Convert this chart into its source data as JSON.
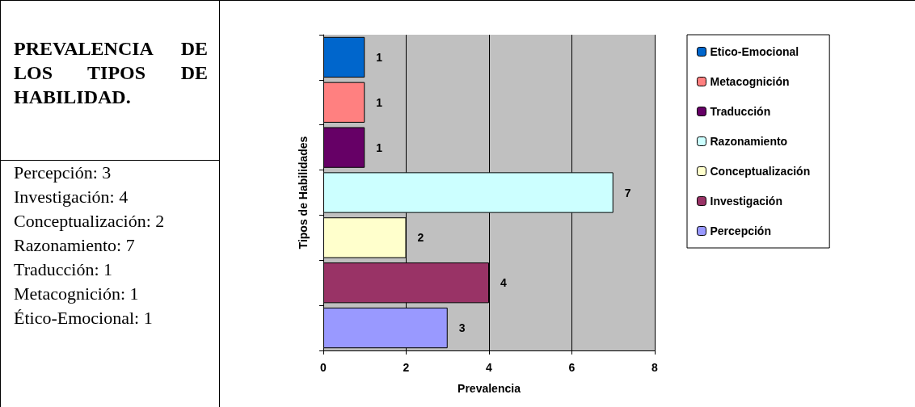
{
  "chart_data": {
    "type": "bar",
    "orientation": "horizontal",
    "title": "PREVALENCIA DE LOS TIPOS DE HABILIDAD.",
    "annotations": [
      "Percepción: 3",
      "Investigación: 4",
      "Conceptualización: 2",
      "Razonamiento: 7",
      "Traducción: 1",
      "Metacognición: 1",
      "Ético-Emocional: 1"
    ],
    "xlabel": "Prevalencia",
    "ylabel": "Tipos de Habilidades",
    "categories": [
      null,
      null,
      null,
      null,
      null,
      null,
      null
    ],
    "series": [
      {
        "name": "Etico-Emocional",
        "color": "#0066cc",
        "values": [
          1,
          null,
          null,
          null,
          null,
          null,
          null
        ]
      },
      {
        "name": "Metacognición",
        "color": "#ff8080",
        "values": [
          null,
          1,
          null,
          null,
          null,
          null,
          null
        ]
      },
      {
        "name": "Traducción",
        "color": "#660066",
        "values": [
          null,
          null,
          1,
          null,
          null,
          null,
          null
        ]
      },
      {
        "name": "Razonamiento",
        "color": "#ccffff",
        "values": [
          null,
          null,
          null,
          7,
          null,
          null,
          null
        ]
      },
      {
        "name": "Conceptualización",
        "color": "#ffffcc",
        "values": [
          null,
          null,
          null,
          null,
          2,
          null,
          null
        ]
      },
      {
        "name": "Investigación",
        "color": "#993366",
        "values": [
          null,
          null,
          null,
          null,
          null,
          4,
          null
        ]
      },
      {
        "name": "Percepción",
        "color": "#9999ff",
        "values": [
          null,
          null,
          null,
          null,
          null,
          null,
          3
        ]
      }
    ],
    "xlim": [
      0,
      8
    ],
    "xticks": [
      0,
      2,
      4,
      6,
      8
    ],
    "grid": "x",
    "legend": "right",
    "data_labels": true
  }
}
